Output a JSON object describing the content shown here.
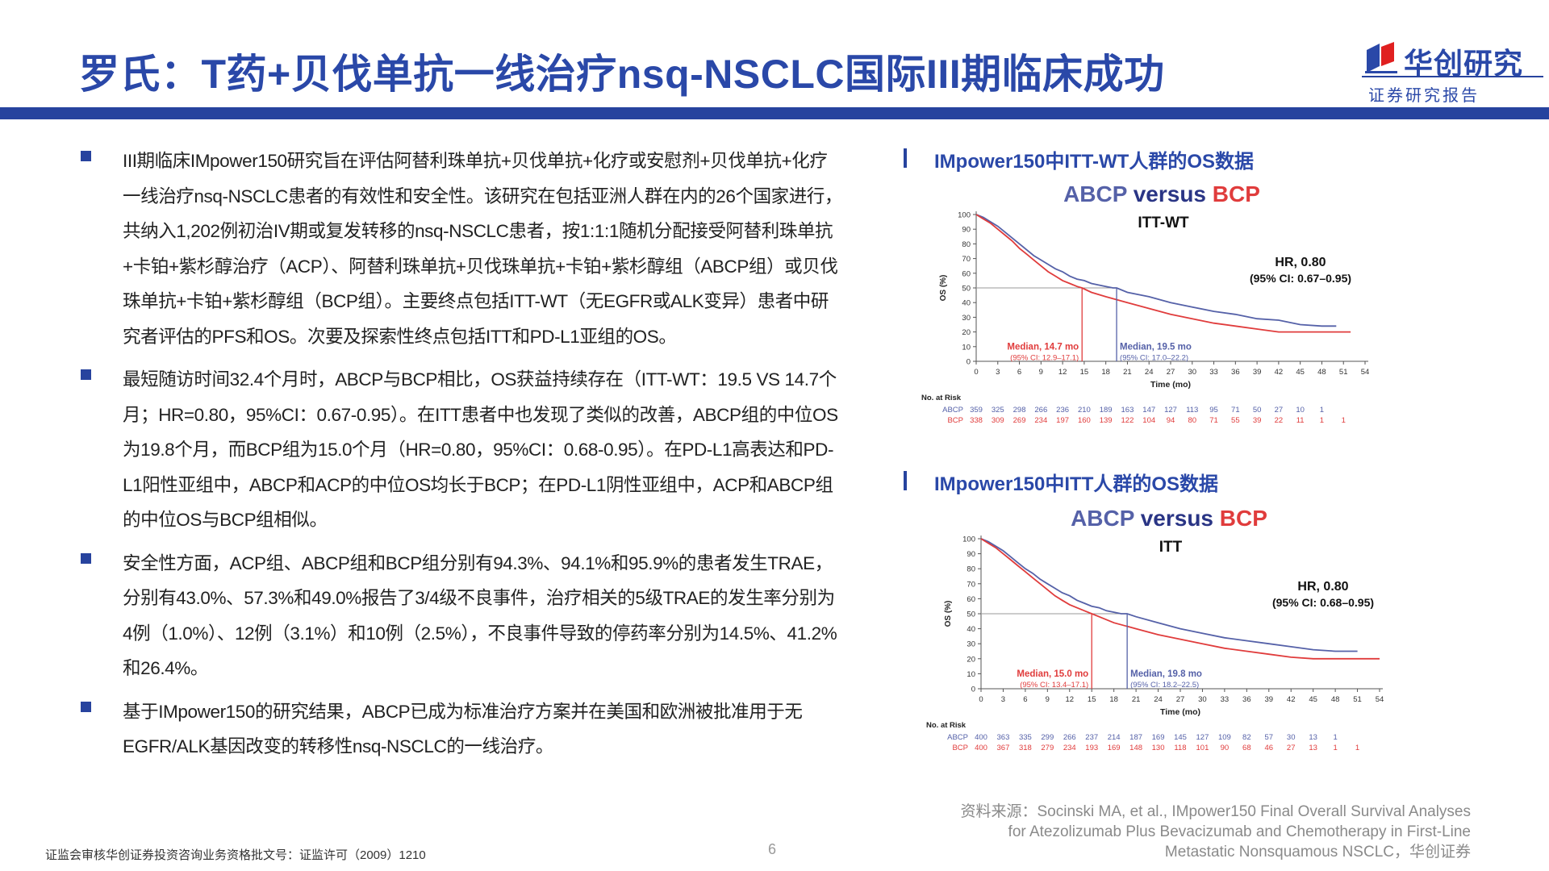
{
  "title": "罗氏：T药+贝伐单抗一线治疗nsq-NSCLC国际III期临床成功",
  "logo": {
    "name": "华创研究",
    "sub": "证券研究报告",
    "colors": {
      "blue": "#2a48a8",
      "red": "#e02020"
    }
  },
  "bullets": [
    "III期临床IMpower150研究旨在评估阿替利珠单抗+贝伐单抗+化疗或安慰剂+贝伐单抗+化疗一线治疗nsq-NSCLC患者的有效性和安全性。该研究在包括亚洲人群在内的26个国家进行，共纳入1,202例初治IV期或复发转移的nsq-NSCLC患者，按1:1:1随机分配接受阿替利珠单抗+卡铂+紫杉醇治疗（ACP）、阿替利珠单抗+贝伐珠单抗+卡铂+紫杉醇组（ABCP组）或贝伐珠单抗+卡铂+紫杉醇组（BCP组）。主要终点包括ITT-WT（无EGFR或ALK变异）患者中研究者评估的PFS和OS。次要及探索性终点包括ITT和PD-L1亚组的OS。",
    "最短随访时间32.4个月时，ABCP与BCP相比，OS获益持续存在（ITT-WT：19.5 VS 14.7个月；HR=0.80，95%CI：0.67-0.95）。在ITT患者中也发现了类似的改善，ABCP组的中位OS为19.8个月，而BCP组为15.0个月（HR=0.80，95%CI：0.68-0.95）。在PD-L1高表达和PD-L1阳性亚组中，ABCP和ACP的中位OS均长于BCP；在PD-L1阴性亚组中，ACP和ABCP组的中位OS与BCP组相似。",
    "安全性方面，ACP组、ABCP组和BCP组分别有94.3%、94.1%和95.9%的患者发生TRAE，分别有43.0%、57.3%和49.0%报告了3/4级不良事件，治疗相关的5级TRAE的发生率分别为4例（1.0%）、12例（3.1%）和10例（2.5%），不良事件导致的停药率分别为14.5%、41.2%和26.4%。",
    "基于IMpower150的研究结果，ABCP已成为标准治疗方案并在美国和欧洲被批准用于无EGFR/ALK基因改变的转移性nsq-NSCLC的一线治疗。"
  ],
  "panels": [
    {
      "title": "IMpower150中ITT-WT人群的OS数据"
    },
    {
      "title": "IMpower150中ITT人群的OS数据"
    }
  ],
  "chart_data": [
    {
      "type": "line",
      "title": "ABCP versus BCP",
      "title_parts": [
        "ABCP",
        " versus ",
        "BCP"
      ],
      "subtitle": "ITT-WT",
      "xlabel": "Time (mo)",
      "ylabel": "OS (%)",
      "xlim": [
        0,
        54
      ],
      "ylim": [
        0,
        100
      ],
      "xticks": [
        0,
        3,
        6,
        9,
        12,
        15,
        18,
        21,
        24,
        27,
        30,
        33,
        36,
        39,
        42,
        45,
        48,
        51,
        54
      ],
      "yticks": [
        0,
        10,
        20,
        30,
        40,
        50,
        60,
        70,
        80,
        90,
        100
      ],
      "grid": false,
      "hr_text": "HR, 0.80",
      "ci_text": "(95% CI: 0.67–0.95)",
      "colors": {
        "ABCP": "#5561a8",
        "BCP": "#e03c3c"
      },
      "reference_line_y": 50,
      "series": [
        {
          "name": "ABCP",
          "x": [
            0,
            1,
            2,
            3,
            4,
            5,
            6,
            7,
            8,
            9,
            10,
            11,
            12,
            13,
            14,
            15,
            16,
            17,
            18,
            19,
            19.5,
            21,
            24,
            27,
            30,
            33,
            36,
            39,
            42,
            45,
            48,
            50
          ],
          "y": [
            100,
            98,
            95,
            92,
            88,
            84,
            80,
            76,
            72,
            69,
            66,
            63,
            61,
            58,
            56,
            55,
            53,
            52,
            51,
            50,
            50,
            47,
            44,
            40,
            37,
            34,
            32,
            29,
            28,
            25,
            24,
            24
          ]
        },
        {
          "name": "BCP",
          "x": [
            0,
            1,
            2,
            3,
            4,
            5,
            6,
            7,
            8,
            9,
            10,
            11,
            12,
            13,
            14,
            14.7,
            16,
            18,
            21,
            24,
            27,
            30,
            33,
            36,
            39,
            42,
            45,
            48,
            51,
            52
          ],
          "y": [
            100,
            97,
            94,
            90,
            86,
            82,
            77,
            73,
            69,
            65,
            61,
            58,
            55,
            53,
            51,
            50,
            47,
            44,
            40,
            36,
            32,
            29,
            26,
            24,
            22,
            20,
            20,
            20,
            20,
            20
          ]
        }
      ],
      "medians": [
        {
          "series": "BCP",
          "x": 14.7,
          "label": "Median, 14.7 mo",
          "ci": "(95% CI: 12.9–17.1)"
        },
        {
          "series": "ABCP",
          "x": 19.5,
          "label": "Median, 19.5 mo",
          "ci": "(95% CI: 17.0–22.2)"
        }
      ],
      "risk_table": {
        "title": "No. at Risk",
        "rows": [
          {
            "name": "ABCP",
            "values": [
              "359",
              "325",
              "298",
              "266",
              "236",
              "210",
              "189",
              "163",
              "147",
              "127",
              "113",
              "95",
              "71",
              "50",
              "27",
              "10",
              "1"
            ]
          },
          {
            "name": "BCP",
            "values": [
              "338",
              "309",
              "269",
              "234",
              "197",
              "160",
              "139",
              "122",
              "104",
              "94",
              "80",
              "71",
              "55",
              "39",
              "22",
              "11",
              "1",
              "1"
            ]
          }
        ]
      }
    },
    {
      "type": "line",
      "title": "ABCP versus BCP",
      "title_parts": [
        "ABCP",
        " versus ",
        "BCP"
      ],
      "subtitle": "ITT",
      "xlabel": "Time (mo)",
      "ylabel": "OS (%)",
      "xlim": [
        0,
        54
      ],
      "ylim": [
        0,
        100
      ],
      "xticks": [
        0,
        3,
        6,
        9,
        12,
        15,
        18,
        21,
        24,
        27,
        30,
        33,
        36,
        39,
        42,
        45,
        48,
        51,
        54
      ],
      "yticks": [
        0,
        10,
        20,
        30,
        40,
        50,
        60,
        70,
        80,
        90,
        100
      ],
      "grid": false,
      "hr_text": "HR, 0.80",
      "ci_text": "(95% CI: 0.68–0.95)",
      "colors": {
        "ABCP": "#5561a8",
        "BCP": "#e03c3c"
      },
      "reference_line_y": 50,
      "series": [
        {
          "name": "ABCP",
          "x": [
            0,
            1,
            2,
            3,
            4,
            5,
            6,
            7,
            8,
            9,
            10,
            11,
            12,
            13,
            14,
            15,
            16,
            17,
            18,
            19,
            19.8,
            21,
            24,
            27,
            30,
            33,
            36,
            39,
            42,
            45,
            48,
            51
          ],
          "y": [
            100,
            98,
            95,
            92,
            88,
            84,
            80,
            77,
            73,
            70,
            67,
            64,
            62,
            59,
            57,
            55,
            54,
            52,
            51,
            50,
            50,
            48,
            44,
            40,
            37,
            34,
            32,
            30,
            28,
            26,
            25,
            25
          ]
        },
        {
          "name": "BCP",
          "x": [
            0,
            1,
            2,
            3,
            4,
            5,
            6,
            7,
            8,
            9,
            10,
            11,
            12,
            13,
            14,
            15,
            16,
            18,
            21,
            24,
            27,
            30,
            33,
            36,
            39,
            42,
            45,
            48,
            51,
            54
          ],
          "y": [
            100,
            97,
            94,
            90,
            86,
            82,
            78,
            74,
            70,
            66,
            62,
            59,
            56,
            54,
            52,
            50,
            48,
            44,
            40,
            36,
            33,
            30,
            27,
            25,
            23,
            21,
            20,
            20,
            20,
            20
          ]
        }
      ],
      "medians": [
        {
          "series": "BCP",
          "x": 15.0,
          "label": "Median, 15.0 mo",
          "ci": "(95% CI: 13.4–17.1)"
        },
        {
          "series": "ABCP",
          "x": 19.8,
          "label": "Median, 19.8 mo",
          "ci": "(95% CI: 18.2–22.5)"
        }
      ],
      "risk_table": {
        "title": "No. at Risk",
        "rows": [
          {
            "name": "ABCP",
            "values": [
              "400",
              "363",
              "335",
              "299",
              "266",
              "237",
              "214",
              "187",
              "169",
              "145",
              "127",
              "109",
              "82",
              "57",
              "30",
              "13",
              "1"
            ]
          },
          {
            "name": "BCP",
            "values": [
              "400",
              "367",
              "318",
              "279",
              "234",
              "193",
              "169",
              "148",
              "130",
              "118",
              "101",
              "90",
              "68",
              "46",
              "27",
              "13",
              "1",
              "1"
            ]
          }
        ]
      }
    }
  ],
  "source": "资料来源：Socinski MA, et al., IMpower150 Final Overall Survival Analyses for Atezolizumab Plus Bevacizumab and Chemotherapy in First-Line Metastatic Nonsquamous NSCLC，华创证券",
  "footer": "证监会审核华创证券投资咨询业务资格批文号：证监许可（2009）1210",
  "page_number": "6"
}
